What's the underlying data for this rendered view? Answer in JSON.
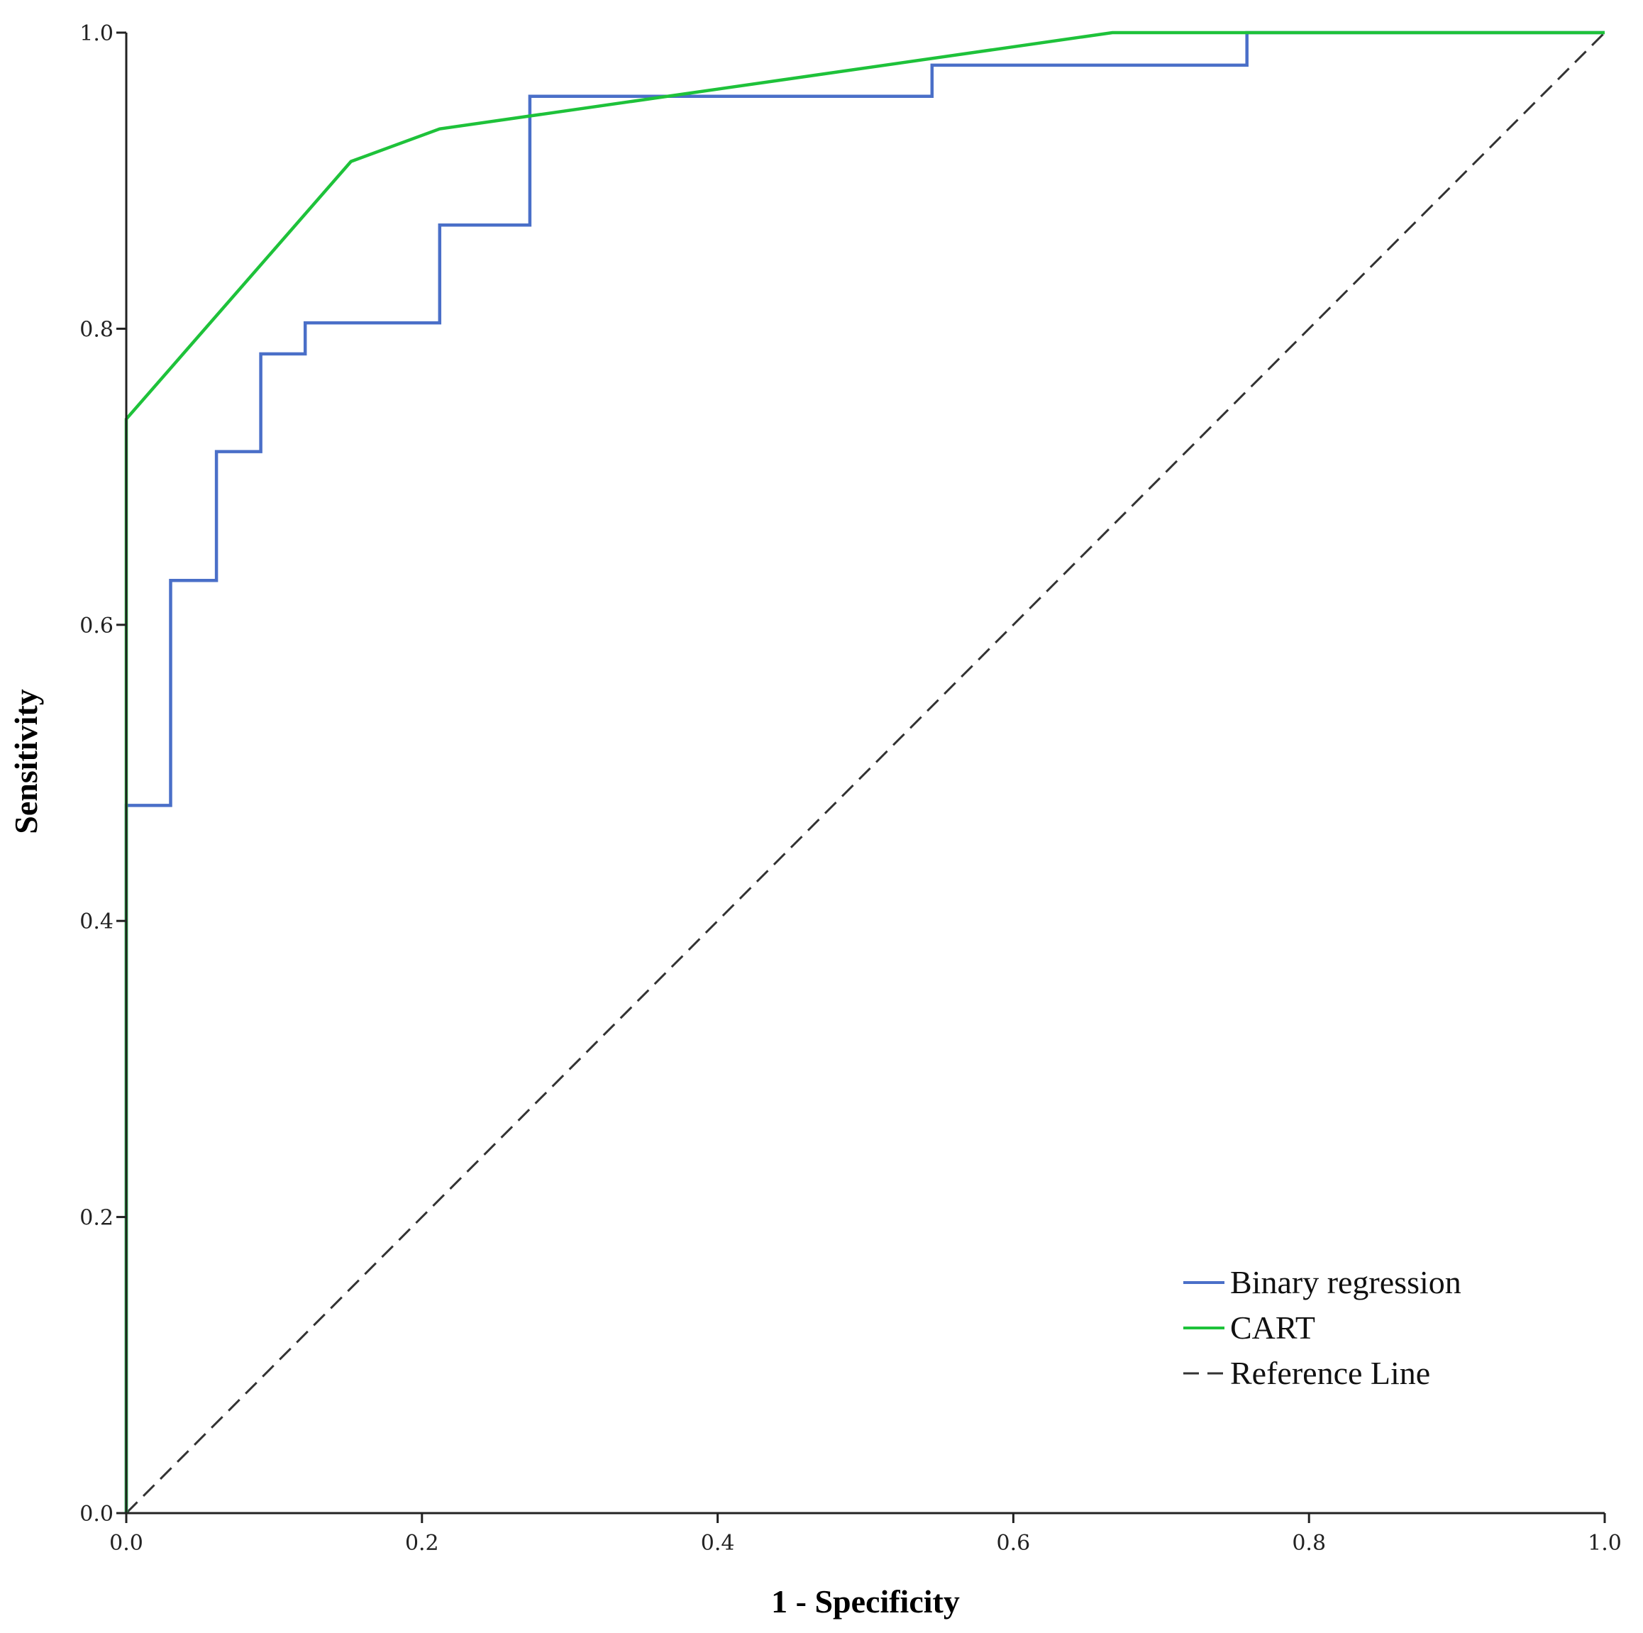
{
  "chart_data": {
    "type": "line",
    "title": "",
    "xlabel": "1 - Specificity",
    "ylabel": "Sensitivity",
    "xlim": [
      0,
      1
    ],
    "ylim": [
      0,
      1
    ],
    "xticks": [
      "0.0",
      "0.2",
      "0.4",
      "0.6",
      "0.8",
      "1.0"
    ],
    "yticks": [
      "0.0",
      "0.2",
      "0.4",
      "0.6",
      "0.8",
      "1.0"
    ],
    "grid": false,
    "legend_position": "bottom-right",
    "series": [
      {
        "name": "Binary regression",
        "color": "#4a6fc8",
        "style": "step",
        "x": [
          0.0,
          0.0,
          0.03,
          0.03,
          0.061,
          0.061,
          0.091,
          0.091,
          0.121,
          0.121,
          0.212,
          0.212,
          0.273,
          0.273,
          0.545,
          0.545,
          0.758,
          0.758,
          1.0
        ],
        "y": [
          0.0,
          0.478,
          0.478,
          0.63,
          0.63,
          0.717,
          0.717,
          0.783,
          0.783,
          0.804,
          0.804,
          0.87,
          0.87,
          0.957,
          0.957,
          0.978,
          0.978,
          1.0,
          1.0
        ]
      },
      {
        "name": "CART",
        "color": "#1ec23a",
        "style": "solid",
        "x": [
          0.0,
          0.0,
          0.152,
          0.212,
          0.667,
          1.0
        ],
        "y": [
          0.0,
          0.739,
          0.913,
          0.935,
          1.0,
          1.0
        ]
      },
      {
        "name": "Reference Line",
        "color": "#333333",
        "style": "dashed",
        "x": [
          0.0,
          1.0
        ],
        "y": [
          0.0,
          1.0
        ]
      }
    ]
  }
}
